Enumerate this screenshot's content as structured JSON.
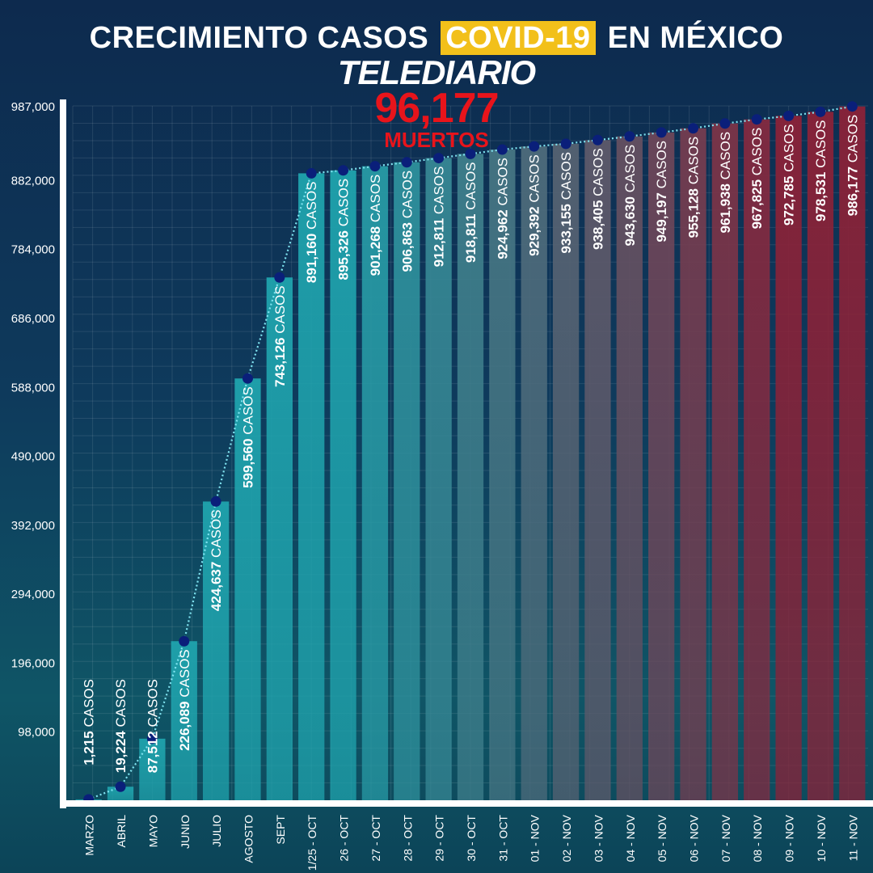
{
  "header": {
    "title_before": "CRECIMIENTO CASOS",
    "title_highlight": "COVID-19",
    "title_after": "EN MÉXICO",
    "brand": "TELEDIARIO",
    "deaths_value": "96,177",
    "deaths_label": "MUERTOS"
  },
  "colors": {
    "teal_bar": "#1fa3ad",
    "red_bar": "#8a2238",
    "marker": "#0a1f7a",
    "line": "#7fe3f0",
    "deaths": "#e8141b",
    "highlight": "#f2c01a"
  },
  "chart_data": {
    "type": "bar",
    "categories": [
      "MARZO",
      "ABRIL",
      "MAYO",
      "JUNIO",
      "JULIO",
      "AGOSTO",
      "SEPT",
      "1/25 - OCT",
      "26 - OCT",
      "27 - OCT",
      "28 - OCT",
      "29 - OCT",
      "30 - OCT",
      "31 - OCT",
      "01 - NOV",
      "02 - NOV",
      "03 - NOV",
      "04 - NOV",
      "05 - NOV",
      "06 - NOV",
      "07 - NOV",
      "08 - NOV",
      "09 - NOV",
      "10 - NOV",
      "11 - NOV"
    ],
    "values": [
      1215,
      19224,
      87512,
      226089,
      424637,
      599560,
      743126,
      891160,
      895326,
      901268,
      906863,
      912811,
      918811,
      924962,
      929392,
      933155,
      938405,
      943630,
      949197,
      955128,
      961938,
      967825,
      972785,
      978531,
      986177
    ],
    "labels": [
      "1,215",
      "19,224",
      "87,512",
      "226,089",
      "424,637",
      "599,560",
      "743,126",
      "891,160",
      "895,326",
      "901,268",
      "906,863",
      "912,811",
      "918,811",
      "924,962",
      "929,392",
      "933,155",
      "938,405",
      "943,630",
      "949,197",
      "955,128",
      "961,938",
      "967,825",
      "972,785",
      "978,531",
      "986,177"
    ],
    "unit_label": "CASOS",
    "yticks": [
      "98,000",
      "196,000",
      "294,000",
      "392,000",
      "490,000",
      "588,000",
      "686,000",
      "784,000",
      "882,000",
      "987,000"
    ],
    "ytick_values": [
      98000,
      196000,
      294000,
      392000,
      490000,
      588000,
      686000,
      784000,
      882000,
      987000
    ],
    "ylim": [
      0,
      987000
    ],
    "grid": true,
    "line_overlay": true
  }
}
